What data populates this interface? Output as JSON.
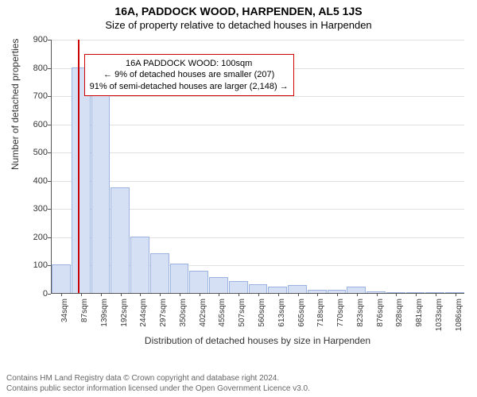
{
  "title_line1": "16A, PADDOCK WOOD, HARPENDEN, AL5 1JS",
  "title_line2": "Size of property relative to detached houses in Harpenden",
  "ylabel": "Number of detached properties",
  "xlabel": "Distribution of detached houses by size in Harpenden",
  "chart": {
    "type": "histogram",
    "ylim": [
      0,
      900
    ],
    "ytick_step": 100,
    "yticks": [
      0,
      100,
      200,
      300,
      400,
      500,
      600,
      700,
      800,
      900
    ],
    "xticks": [
      "34sqm",
      "87sqm",
      "139sqm",
      "192sqm",
      "244sqm",
      "297sqm",
      "350sqm",
      "402sqm",
      "455sqm",
      "507sqm",
      "560sqm",
      "613sqm",
      "665sqm",
      "718sqm",
      "770sqm",
      "823sqm",
      "876sqm",
      "928sqm",
      "981sqm",
      "1033sqm",
      "1086sqm"
    ],
    "bars": [
      100,
      800,
      710,
      375,
      200,
      140,
      105,
      78,
      55,
      42,
      30,
      22,
      28,
      12,
      10,
      22,
      6,
      0,
      4,
      3,
      2
    ],
    "bar_fill": "#d6e0f5",
    "bar_stroke": "#9bb3e0",
    "grid_color": "#e0e0e0",
    "axis_color": "#555555",
    "marker_value_sqm": 100,
    "marker_color": "#cc0000",
    "x_min": 34,
    "x_max": 1086
  },
  "annotation": {
    "line1": "16A PADDOCK WOOD: 100sqm",
    "line2": "← 9% of detached houses are smaller (207)",
    "line3": "91% of semi-detached houses are larger (2,148) →",
    "border_color": "#cc0000"
  },
  "footer_line1": "Contains HM Land Registry data © Crown copyright and database right 2024.",
  "footer_line2": "Contains public sector information licensed under the Open Government Licence v3.0."
}
